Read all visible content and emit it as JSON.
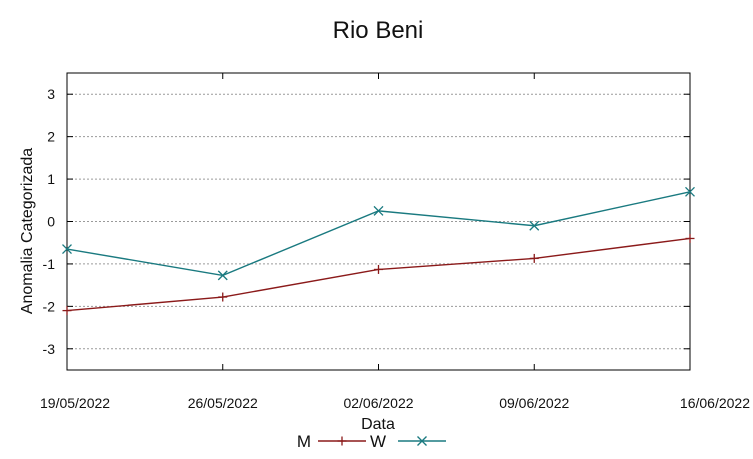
{
  "chart_data": {
    "type": "line",
    "title": "Rio Beni",
    "xlabel": "Data",
    "ylabel": "Anomalia Categorizada",
    "categories": [
      "19/05/2022",
      "26/05/2022",
      "02/06/2022",
      "09/06/2022",
      "16/06/2022"
    ],
    "ylim": [
      -3.5,
      3.5
    ],
    "yticks": [
      3,
      2,
      1,
      0,
      -1,
      -2,
      -3
    ],
    "yticks_labels": [
      "3",
      "2",
      "1",
      "0",
      "-1",
      "-2",
      "-3"
    ],
    "grid": "horizontal dotted",
    "legend_position": "bottom-center",
    "series": [
      {
        "name": "M",
        "color": "#8b1a1a",
        "marker": "plus",
        "values": [
          -2.1,
          -1.78,
          -1.13,
          -0.87,
          -0.4
        ]
      },
      {
        "name": "W",
        "color": "#1a7a80",
        "marker": "cross",
        "values": [
          -0.65,
          -1.27,
          0.25,
          -0.1,
          0.7
        ]
      }
    ]
  }
}
